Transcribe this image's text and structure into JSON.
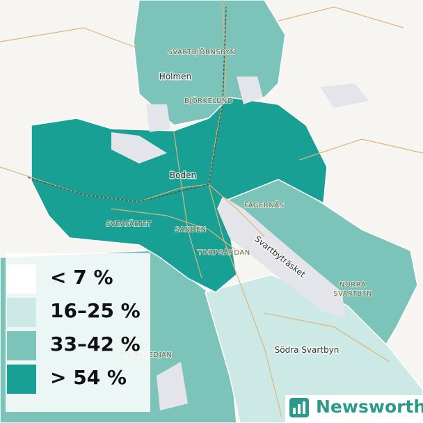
{
  "legend": {
    "items": [
      {
        "label": "< 7 %",
        "color": "#ffffff"
      },
      {
        "label": "16–25 %",
        "color": "#cce9e5"
      },
      {
        "label": "33–42 %",
        "color": "#7cc3b9"
      },
      {
        "label": "> 54 %",
        "color": "#18a095"
      }
    ]
  },
  "places": [
    "SVARTBJÖRNSBYN",
    "Holmen",
    "BJÖRKELUND",
    "Boden",
    "FAGERNÄS",
    "SVEAFÄLTET",
    "SANDEN",
    "TORPGÅRDAN",
    "Svartbyträsket",
    "NORRA",
    "SVARTBYN",
    "Södra Svartbyn",
    "BJÖRKVEDJAN"
  ],
  "brand": "Newsworthy"
}
